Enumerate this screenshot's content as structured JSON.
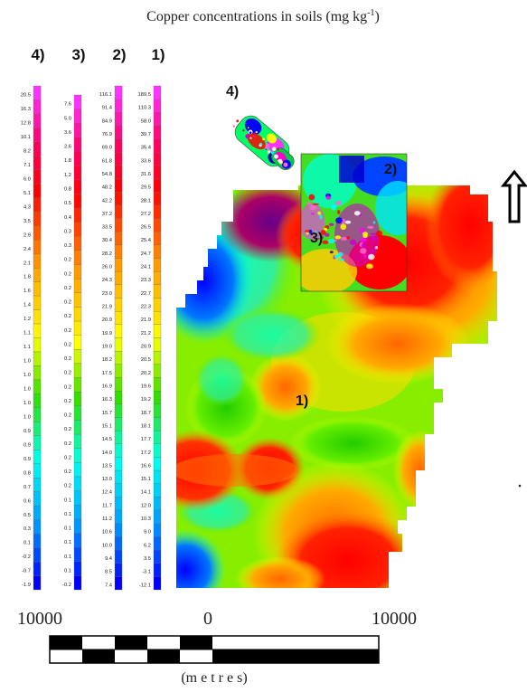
{
  "title": "Copper concentrations in soils (mg kg",
  "title_sup": "-1",
  "title_tail": ")",
  "column_headers": [
    "4)",
    "3)",
    "2)",
    "1)"
  ],
  "legends": [
    {
      "id": "4",
      "values": [
        "20.5",
        "16.3",
        "12.8",
        "10.1",
        "8.2",
        "7.1",
        "6.0",
        "5.1",
        "4.3",
        "3.5",
        "2.9",
        "2.4",
        "2.1",
        "1.8",
        "1.6",
        "1.4",
        "1.2",
        "1.1",
        "1.1",
        "1.0",
        "1.0",
        "1.0",
        "1.0",
        "1.0",
        "0.9",
        "0.9",
        "0.9",
        "0.8",
        "0.7",
        "0.6",
        "0.5",
        "0.3",
        "0.1",
        "-0.2",
        "-0.7",
        "-1.9"
      ]
    },
    {
      "id": "3",
      "values": [
        "7.6",
        "5.0",
        "3.6",
        "2.6",
        "1.8",
        "1.2",
        "0.8",
        "0.5",
        "0.4",
        "0.3",
        "0.3",
        "0.2",
        "0.2",
        "0.2",
        "0.2",
        "0.2",
        "0.2",
        "0.2",
        "0.2",
        "0.2",
        "0.2",
        "0.2",
        "0.2",
        "0.2",
        "0.2",
        "0.2",
        "0.2",
        "0.2",
        "0.1",
        "0.1",
        "0.1",
        "0.1",
        "0.1",
        "0.1",
        "-0.2"
      ]
    },
    {
      "id": "2",
      "values": [
        "116.1",
        "91.4",
        "84.9",
        "76.9",
        "69.0",
        "61.8",
        "54.8",
        "48.2",
        "42.2",
        "37.2",
        "33.5",
        "30.4",
        "28.2",
        "26.0",
        "24.3",
        "23.0",
        "21.9",
        "20.9",
        "19.9",
        "19.0",
        "18.2",
        "17.5",
        "16.9",
        "16.3",
        "15.7",
        "15.1",
        "14.5",
        "14.0",
        "13.5",
        "13.0",
        "12.4",
        "11.7",
        "11.2",
        "10.6",
        "10.0",
        "9.4",
        "8.5",
        "7.4"
      ]
    },
    {
      "id": "1",
      "values": [
        "189.5",
        "110.3",
        "58.0",
        "39.7",
        "35.4",
        "33.6",
        "31.6",
        "29.5",
        "28.1",
        "27.2",
        "26.5",
        "25.4",
        "24.7",
        "24.1",
        "23.3",
        "22.7",
        "22.3",
        "21.9",
        "21.2",
        "20.9",
        "20.5",
        "20.2",
        "19.6",
        "19.2",
        "18.7",
        "18.1",
        "17.7",
        "17.2",
        "16.6",
        "15.1",
        "14.1",
        "12.0",
        "10.3",
        "9.0",
        "6.2",
        "3.5",
        "-3.1",
        "-12.1"
      ]
    }
  ],
  "map_labels": {
    "area1": "1)",
    "area2": "2)",
    "area3": "3)",
    "area4": "4)"
  },
  "scale": {
    "left": "10000",
    "zero": "0",
    "right": "10000",
    "unit": "(m e t r e s)"
  },
  "colors": {
    "high": "#ff00ff",
    "red": "#ff0000",
    "orange": "#ff8c00",
    "yellow": "#ffff00",
    "green": "#00dd00",
    "cyan": "#00e5ff",
    "blue": "#0000ff"
  },
  "north_arrow_icon": "north-arrow-icon"
}
